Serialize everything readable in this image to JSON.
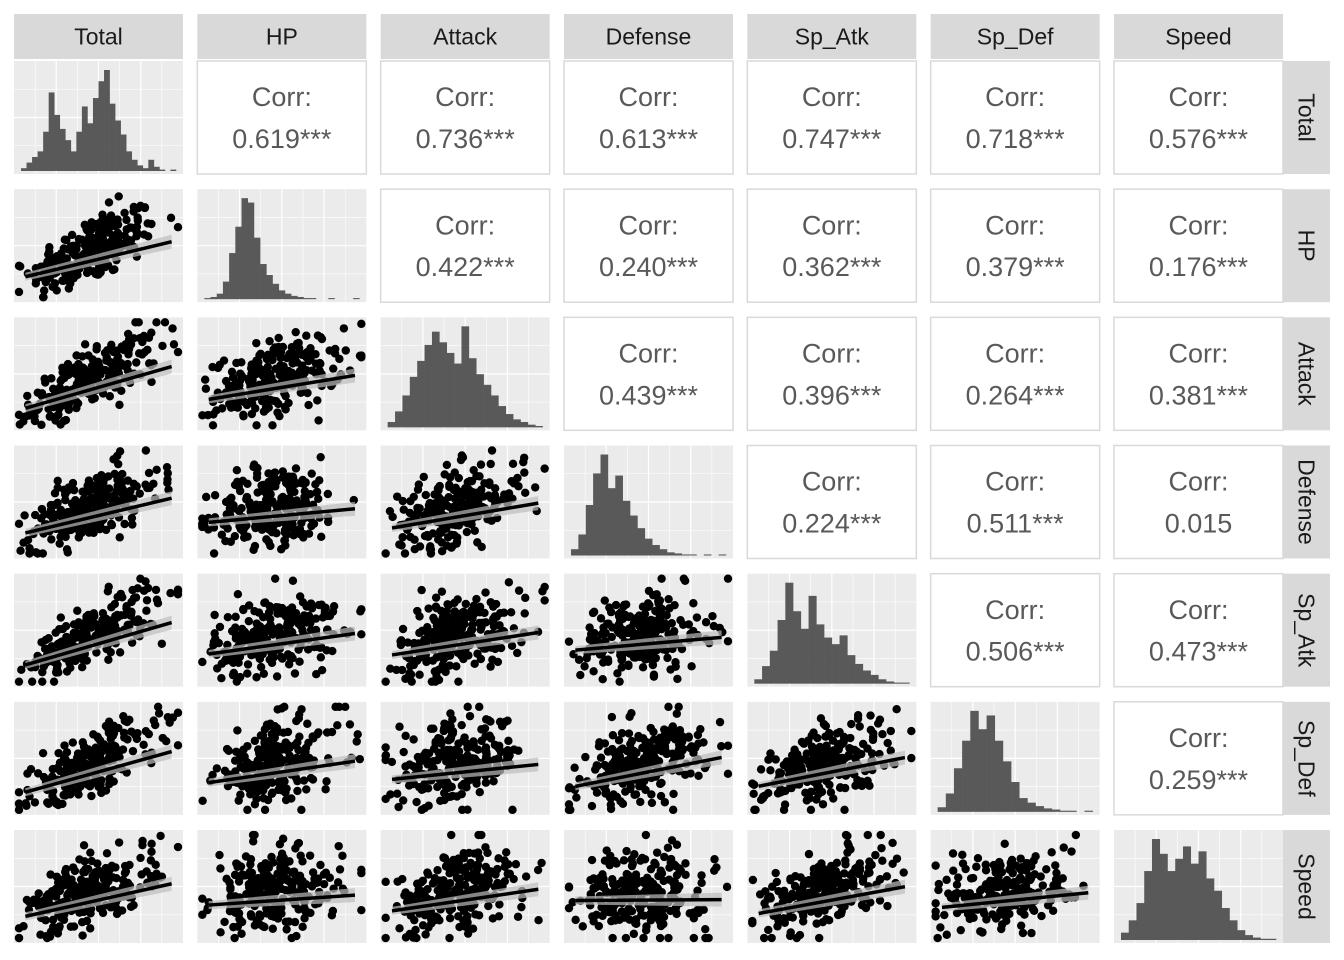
{
  "chart_data": {
    "type": "scatterplot-matrix",
    "variables": [
      "Total",
      "HP",
      "Attack",
      "Defense",
      "Sp_Atk",
      "Sp_Def",
      "Speed"
    ],
    "upper": {
      "header": "Corr:",
      "cells": [
        {
          "row": "Total",
          "col": "HP",
          "value": "0.619***"
        },
        {
          "row": "Total",
          "col": "Attack",
          "value": "0.736***"
        },
        {
          "row": "Total",
          "col": "Defense",
          "value": "0.613***"
        },
        {
          "row": "Total",
          "col": "Sp_Atk",
          "value": "0.747***"
        },
        {
          "row": "Total",
          "col": "Sp_Def",
          "value": "0.718***"
        },
        {
          "row": "Total",
          "col": "Speed",
          "value": "0.576***"
        },
        {
          "row": "HP",
          "col": "Attack",
          "value": "0.422***"
        },
        {
          "row": "HP",
          "col": "Defense",
          "value": "0.240***"
        },
        {
          "row": "HP",
          "col": "Sp_Atk",
          "value": "0.362***"
        },
        {
          "row": "HP",
          "col": "Sp_Def",
          "value": "0.379***"
        },
        {
          "row": "HP",
          "col": "Speed",
          "value": "0.176***"
        },
        {
          "row": "Attack",
          "col": "Defense",
          "value": "0.439***"
        },
        {
          "row": "Attack",
          "col": "Sp_Atk",
          "value": "0.396***"
        },
        {
          "row": "Attack",
          "col": "Sp_Def",
          "value": "0.264***"
        },
        {
          "row": "Attack",
          "col": "Speed",
          "value": "0.381***"
        },
        {
          "row": "Defense",
          "col": "Sp_Atk",
          "value": "0.224***"
        },
        {
          "row": "Defense",
          "col": "Sp_Def",
          "value": "0.511***"
        },
        {
          "row": "Defense",
          "col": "Speed",
          "value": "0.015"
        },
        {
          "row": "Sp_Atk",
          "col": "Sp_Def",
          "value": "0.506***"
        },
        {
          "row": "Sp_Atk",
          "col": "Speed",
          "value": "0.473***"
        },
        {
          "row": "Sp_Def",
          "col": "Speed",
          "value": "0.259***"
        }
      ]
    },
    "diagonal": {
      "type": "histogram",
      "bins": {
        "Total": [
          2,
          6,
          10,
          14,
          28,
          56,
          40,
          30,
          22,
          14,
          28,
          46,
          34,
          52,
          64,
          72,
          48,
          36,
          26,
          14,
          8,
          4,
          2,
          8,
          3,
          1,
          0,
          1
        ],
        "HP": [
          1,
          2,
          5,
          16,
          42,
          66,
          92,
          88,
          56,
          32,
          22,
          14,
          8,
          5,
          3,
          2,
          1,
          1,
          0,
          0,
          1,
          0,
          0,
          0,
          1
        ],
        "Attack": [
          4,
          12,
          24,
          38,
          50,
          62,
          72,
          64,
          56,
          48,
          76,
          52,
          40,
          32,
          24,
          16,
          10,
          6,
          4,
          2,
          1
        ],
        "Defense": [
          6,
          20,
          48,
          78,
          96,
          64,
          76,
          52,
          38,
          26,
          16,
          10,
          6,
          3,
          2,
          1,
          1,
          0,
          1,
          0,
          1
        ],
        "Sp_Atk": [
          4,
          16,
          30,
          58,
          92,
          66,
          50,
          80,
          54,
          42,
          36,
          44,
          26,
          18,
          12,
          8,
          4,
          2,
          1,
          1
        ],
        "Sp_Def": [
          4,
          16,
          38,
          62,
          88,
          72,
          84,
          62,
          44,
          26,
          12,
          8,
          5,
          3,
          2,
          1,
          1,
          0,
          1
        ],
        "Speed": [
          6,
          16,
          30,
          56,
          82,
          70,
          56,
          66,
          76,
          62,
          72,
          50,
          40,
          26,
          16,
          8,
          4,
          2,
          1,
          1
        ]
      }
    },
    "lower": {
      "type": "scatter",
      "smooth": "lm",
      "point_color": "#000000"
    },
    "panel_background": "#ebebeb",
    "strip_background": "#d9d9d9",
    "bar_color": "#595959",
    "grid": true
  }
}
